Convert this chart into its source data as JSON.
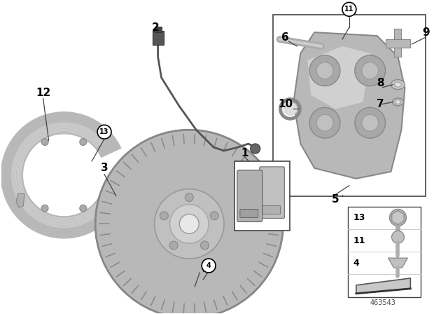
{
  "bg_color": "#ffffff",
  "diagram_number": "463543",
  "label_color": "#000000",
  "line_color": "#333333",
  "gray_light": "#c8c8c8",
  "gray_mid": "#b0b0b0",
  "gray_dark": "#888888"
}
